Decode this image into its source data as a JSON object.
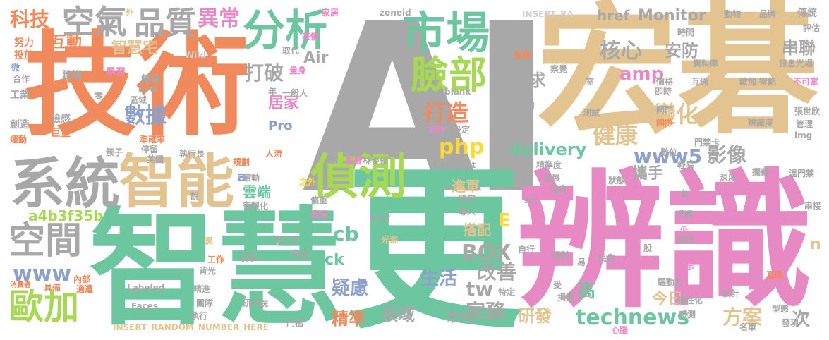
{
  "palette": {
    "orange": "#f08a5d",
    "gray": "#a8a8a8",
    "tan": "#e3c38f",
    "teal": "#6cc6a0",
    "pink": "#e78ac3",
    "green": "#a6d854",
    "blue": "#8da0cb",
    "yellow": "#ffd92f",
    "lightgray": "#cfcfcf"
  },
  "words": {
    "ai": "AI",
    "hong": "宏碁",
    "bianshi": "辨識",
    "zhihui": "智慧",
    "jishu": "技術",
    "geng": "更",
    "xitong": "系統",
    "zhineng": "智能",
    "zhence": "偵測",
    "fenxi": "分析",
    "shichang": "市場",
    "lianbu": "臉部",
    "kongqi": "空氣",
    "pinzhi": "品質",
    "yichang": "異常",
    "keji": "科技",
    "kongjian": "空間",
    "ouja": "歐加",
    "hudong": "互動",
    "zhihuizhai": "智慧宅",
    "shuju": "數據",
    "dapo": "打破",
    "dazao": "打造",
    "daila": "帶來",
    "hexin": "核心",
    "anfang": "安防",
    "monitor": "Monitor",
    "href": "href",
    "amp": "amp",
    "xuqiu": "需求",
    "bianhua": "變化",
    "jiankang": "健康",
    "delivery": "delivery",
    "www5": "www5",
    "yingxiang": "影像",
    "php": "php",
    "pro": "Pro",
    "jujia": "居家",
    "yunduan": "雲端",
    "a": "a",
    "hash": "a4b3f35b",
    "www": "www",
    "cb": "cb",
    "ck": "ck",
    "box": "BOX",
    "gaishan": "改善",
    "tw": "tw",
    "shenghuo": "生活",
    "yilv": "疑慮",
    "jingzhun": "精準",
    "lingyu": "領域",
    "shinei": "市內",
    "jiawu": "家務",
    "yanfa": "研發",
    "technews": "technews",
    "fangan": "方案",
    "ci": "次",
    "jinri": "今日",
    "gao": "高",
    "xieshou": "攜手",
    "dapei": "搭配",
    "jinjun": "進軍",
    "e": "E",
    "chuanlian": "串聯",
    "n": "n",
    "air": "Air",
    "jianzhi": "建議",
    "nuli": "努力",
    "touf": "投放",
    "hezuo": "合作",
    "gongye": "工業",
    "chuangzao": "創造",
    "yundong": "運動",
    "lianliu": "臉感",
    "juliang": "巨量",
    "wei": "微",
    "wild": "Wild",
    "avw": "avw",
    "xuexi": "學習",
    "zhuanjin": "轉進",
    "quyu": "區域",
    "ling": "零",
    "zhunque": "準確率",
    "tingliu": "停留",
    "meiguo": "美國",
    "jiezi": "簇子",
    "zhixingzhang": "執行長",
    "guihua": "規劃",
    "daidong": "帶動",
    "kezhihua": "客製化",
    "shuo": "說",
    "renliu": "人流",
    "rt": "年",
    "liangshen": "量身",
    "quwei": "取代",
    "yibanren": "一般人",
    "biaoqing": "表情",
    "wai": "外",
    "jiaju": "家居",
    "zoneid": "zoneid",
    "insert_ra": "INSERT_RA",
    "dongwu": "動物",
    "pinpai": "品牌",
    "chuantong": "傳統",
    "pingu": "評估",
    "shijian": "時間",
    "jiejue": "解決",
    "jieshou": "接觸",
    "chaju": "察覺",
    "ziliaoku": "資料庫",
    "huotong": "互通",
    "xunxi": "訊息光場",
    "bukeshu": "不可掌",
    "yandu": "眼鏡",
    "kuaisu": "快速",
    "nist": "NIST",
    "blank": "_blank",
    "yiqing": "疫情",
    "ceshi": "測試",
    "jige": "價格",
    "jishi": "即時",
    "biaozhun": "標準",
    "guoji": "國際",
    "huanjing": "環境",
    "shezhi": "設定",
    "chaoshi": "超時",
    "bianshidu": "辨識度",
    "zhangshiwei": "張世欣",
    "guanli": "管理",
    "img": "img",
    "menjinka": "門禁卡",
    "shuwei": "數位",
    "qingying": "輕易",
    "jingzhunlv": "精準度",
    "diyi": "第一",
    "fazhan": "發展",
    "wendu": "溫度",
    "zhuangtai": "狀態",
    "shendu": "深度",
    "lanjie": "攔截",
    "wenmenjin": "溫門禁",
    "tai": "台",
    "chuanjie": "串接",
    "jinqi": "近期",
    "di": "低",
    "jiangdi": "降低",
    "gu": "股",
    "jiben": "基準",
    "jingshi": "警示",
    "zixing": "自行",
    "minsheng": "民生",
    "bianli": "便利",
    "yi": "易",
    "shou": "受",
    "qudongli": "驅動力",
    "tanxinghua": "彈性化",
    "ganxing": "感測",
    "sheji": "設計",
    "xinghu": "型態",
    "faxian": "發現",
    "mingdan": "名單",
    "xinnao": "心腦",
    "jielu": "揭露",
    "hudong2": "互聯",
    "tedin": "特定",
    "yinqing": "引擎",
    "gongzuo": "工作",
    "beiguang": "背光",
    "hei": "黑",
    "neibu": "內部",
    "juban": "具備",
    "xiaofeizhe": "消費者",
    "shiyong": "適遭",
    "labeled": "Labeled",
    "faces": "Faces",
    "jingjin": "精進",
    "tuandui": "團隊",
    "zhixing": "執行",
    "insert_random": "INSERT_RANDOM_NUMBER_HERE'",
    "yanjiuyuan": "研究院",
    "menkan": "門檻",
    "jinyibu": "進一步",
    "goutong": "溝通",
    "tongguo": "通過",
    "guangyuan": "光源",
    "pianzhong": "偏重",
    "lfw": "LFW",
    "zhiwai": "之外",
    "guojia": "國家",
    "daoru": "導入",
    "target": "target",
    "yingxiang2": "影響",
    "linjunjie": "林俊傑",
    "src": "src",
    "menjin": "閘門",
    "shi": "室",
    "dai": "帶",
    "zi": "子"
  }
}
